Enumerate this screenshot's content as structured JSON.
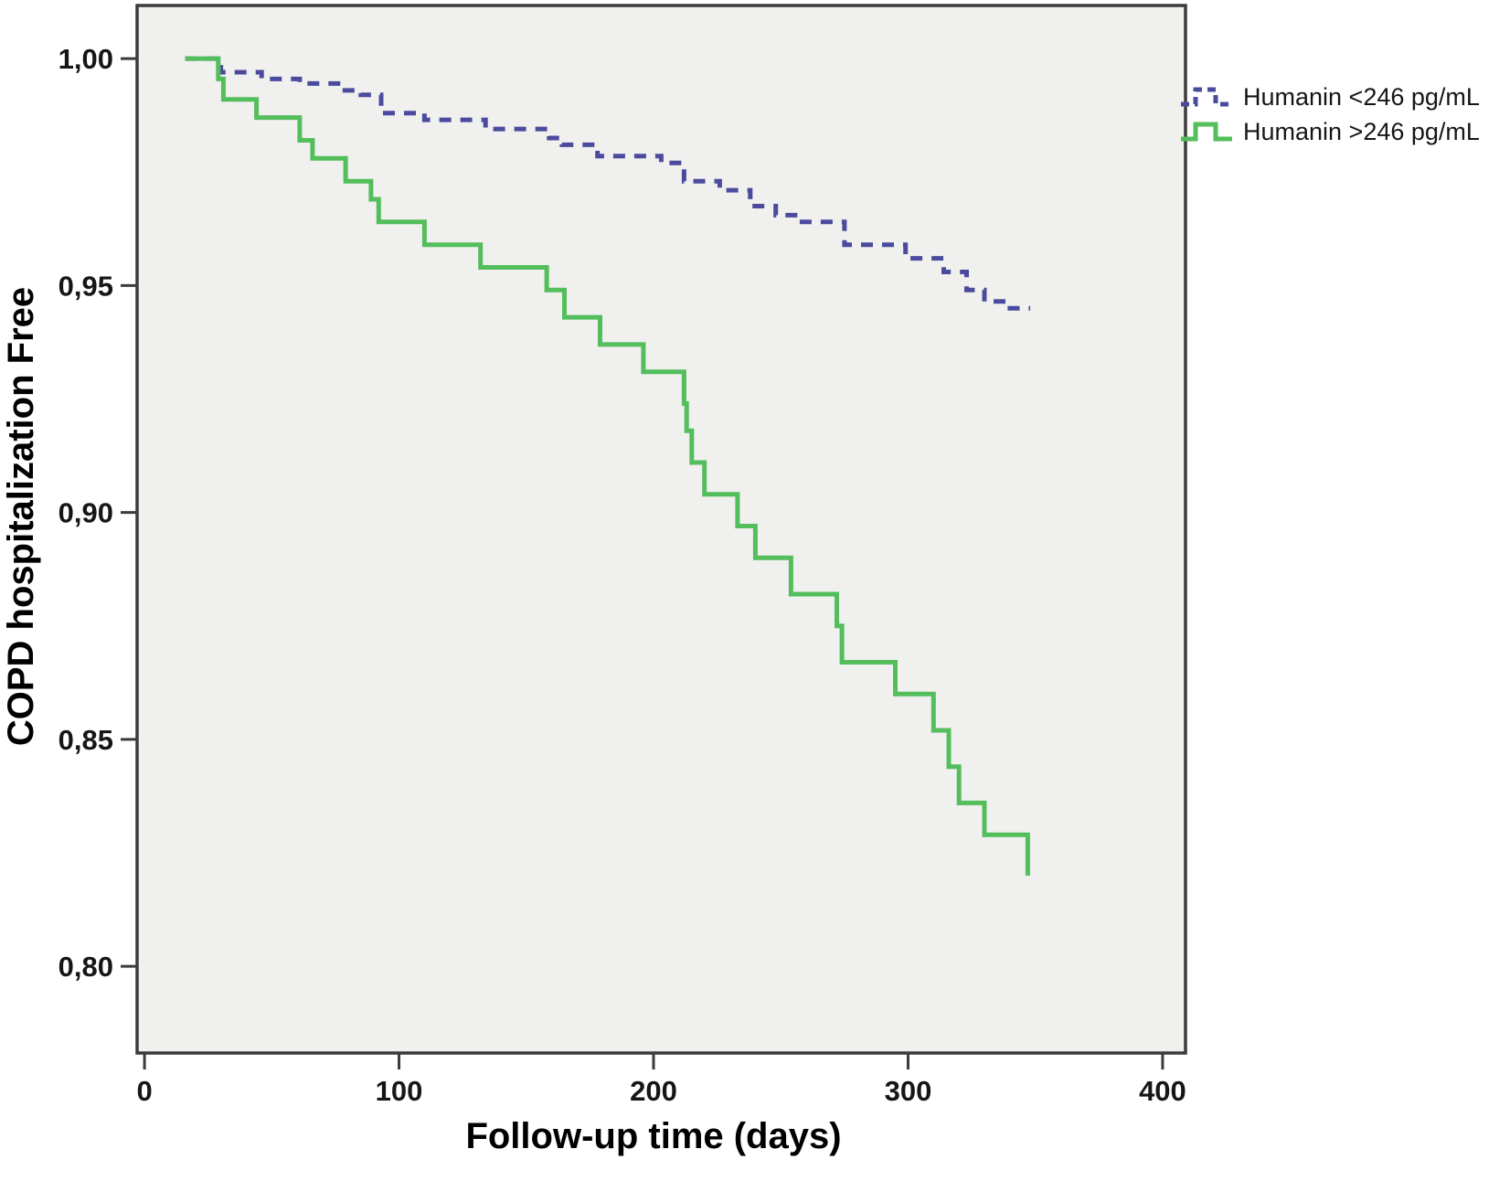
{
  "chart_data": {
    "type": "line",
    "subtype": "kaplan-meier-step",
    "title": "",
    "x_axis": {
      "label": "Follow-up time (days)",
      "range": [
        -2.9,
        409
      ],
      "ticks": [
        {
          "value": 0,
          "label": "0"
        },
        {
          "value": 100,
          "label": "100"
        },
        {
          "value": 200,
          "label": "200"
        },
        {
          "value": 300,
          "label": "300"
        },
        {
          "value": 400,
          "label": "400"
        }
      ],
      "grid": false
    },
    "y_axis": {
      "label": "COPD hospitalization Free",
      "range": [
        0.7809,
        1.0117
      ],
      "ticks": [
        {
          "value": 1.0,
          "label": "1,00"
        },
        {
          "value": 0.95,
          "label": "0,95"
        },
        {
          "value": 0.9,
          "label": "0,90"
        },
        {
          "value": 0.85,
          "label": "0,85"
        },
        {
          "value": 0.8,
          "label": "0,80"
        }
      ],
      "grid": false
    },
    "legend": {
      "position": "right-top",
      "entries": [
        "Humanin <246 pg/mL",
        "Humanin >246 pg/mL"
      ]
    },
    "series": [
      {
        "name": "Humanin <246 pg/mL",
        "color": "#4B4B9E",
        "style": "dashed",
        "points": [
          [
            16,
            1.0
          ],
          [
            30,
            0.997
          ],
          [
            46,
            0.9955
          ],
          [
            61,
            0.9945
          ],
          [
            77,
            0.993
          ],
          [
            85,
            0.992
          ],
          [
            93,
            0.988
          ],
          [
            110,
            0.9865
          ],
          [
            134,
            0.9845
          ],
          [
            159,
            0.9825
          ],
          [
            164,
            0.981
          ],
          [
            178,
            0.9785
          ],
          [
            203,
            0.977
          ],
          [
            212,
            0.973
          ],
          [
            226,
            0.971
          ],
          [
            238,
            0.9675
          ],
          [
            248,
            0.9655
          ],
          [
            257,
            0.964
          ],
          [
            275,
            0.959
          ],
          [
            299,
            0.956
          ],
          [
            314,
            0.953
          ],
          [
            323,
            0.949
          ],
          [
            330,
            0.9465
          ],
          [
            340,
            0.945
          ],
          [
            348,
            0.945
          ]
        ]
      },
      {
        "name": "Humanin >246 pg/mL",
        "color": "#53BE5B",
        "style": "solid",
        "points": [
          [
            16,
            1.0
          ],
          [
            29,
            0.9955
          ],
          [
            31,
            0.991
          ],
          [
            44,
            0.987
          ],
          [
            61,
            0.982
          ],
          [
            66,
            0.978
          ],
          [
            79,
            0.973
          ],
          [
            89,
            0.969
          ],
          [
            92,
            0.964
          ],
          [
            110,
            0.959
          ],
          [
            132,
            0.954
          ],
          [
            158,
            0.949
          ],
          [
            165,
            0.943
          ],
          [
            179,
            0.937
          ],
          [
            196,
            0.931
          ],
          [
            212,
            0.924
          ],
          [
            213,
            0.918
          ],
          [
            215,
            0.911
          ],
          [
            220,
            0.904
          ],
          [
            233,
            0.897
          ],
          [
            240,
            0.89
          ],
          [
            254,
            0.882
          ],
          [
            272,
            0.875
          ],
          [
            274,
            0.867
          ],
          [
            295,
            0.86
          ],
          [
            310,
            0.852
          ],
          [
            316,
            0.844
          ],
          [
            320,
            0.836
          ],
          [
            330,
            0.829
          ],
          [
            347,
            0.82
          ]
        ]
      }
    ],
    "colors": {
      "plot_bg": "#F0F0EF",
      "frame": "#3B3B3B",
      "text": "#161616"
    }
  }
}
